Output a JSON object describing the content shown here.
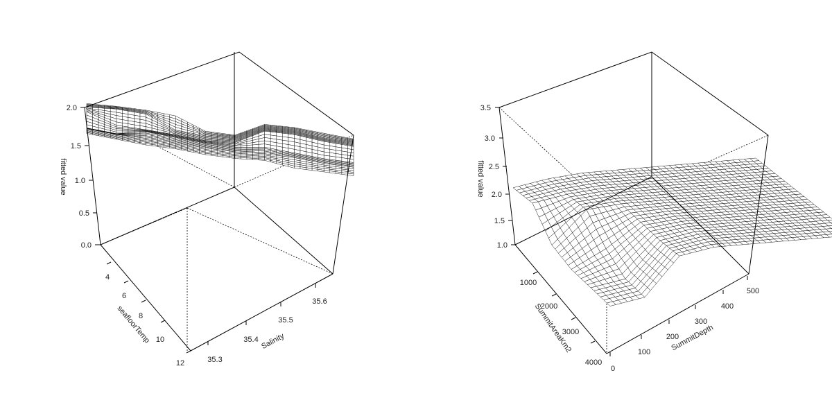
{
  "chart_data": [
    {
      "type": "surface",
      "zlabel": "fitted value",
      "xlabel": "seafloorTemp",
      "ylabel": "Salinity",
      "zticks": [
        "0.0",
        "0.5",
        "1.0",
        "1.5",
        "2.0"
      ],
      "xticks": [
        "4",
        "6",
        "8",
        "10",
        "12"
      ],
      "yticks": [
        "35.3",
        "35.4",
        "35.5",
        "35.6"
      ],
      "zlim": [
        0,
        2.0
      ],
      "description_grid": "step-shaped fitted surface between 1.0 and 2.0",
      "surface_rows": [
        [
          1.92,
          1.95,
          1.95,
          1.9,
          1.6,
          1.6,
          1.98,
          2.0,
          1.95,
          1.9
        ],
        [
          1.9,
          1.95,
          1.92,
          1.6,
          1.55,
          1.58,
          1.96,
          1.98,
          1.9,
          1.88
        ],
        [
          1.85,
          1.6,
          1.58,
          1.55,
          1.5,
          1.55,
          1.95,
          1.96,
          1.88,
          1.85
        ],
        [
          1.5,
          1.45,
          1.6,
          1.55,
          1.5,
          1.5,
          1.6,
          1.55,
          1.5,
          1.5
        ],
        [
          1.55,
          1.5,
          1.5,
          1.48,
          1.45,
          1.45,
          1.5,
          1.5,
          1.45,
          1.45
        ],
        [
          1.5,
          1.45,
          1.4,
          1.4,
          1.35,
          1.35,
          1.4,
          1.3,
          1.3,
          1.3
        ]
      ]
    },
    {
      "type": "surface",
      "zlabel": "fitted value",
      "xlabel": "SummitAreaKm2",
      "ylabel": "SummitDepth",
      "zticks": [
        "1.0",
        "1.5",
        "2.0",
        "2.5",
        "3.0",
        "3.5"
      ],
      "xticks": [
        "1000",
        "2000",
        "3000",
        "4000"
      ],
      "yticks": [
        "0",
        "100",
        "200",
        "300",
        "400",
        "500"
      ],
      "zlim": [
        1.0,
        3.5
      ],
      "surface_rows": [
        [
          2.05,
          2.15,
          2.2,
          2.2,
          2.2,
          2.2,
          2.2,
          2.2
        ],
        [
          2.0,
          2.1,
          2.15,
          2.15,
          2.15,
          2.15,
          2.15,
          2.15
        ],
        [
          1.5,
          2.05,
          2.1,
          2.1,
          2.1,
          2.1,
          2.1,
          2.1
        ],
        [
          1.3,
          1.6,
          2.0,
          2.05,
          2.05,
          2.05,
          2.05,
          2.05
        ],
        [
          1.2,
          1.3,
          1.9,
          2.0,
          2.0,
          2.0,
          2.0,
          2.0
        ],
        [
          1.1,
          1.2,
          1.85,
          1.95,
          1.95,
          1.95,
          1.95,
          1.95
        ]
      ]
    }
  ]
}
